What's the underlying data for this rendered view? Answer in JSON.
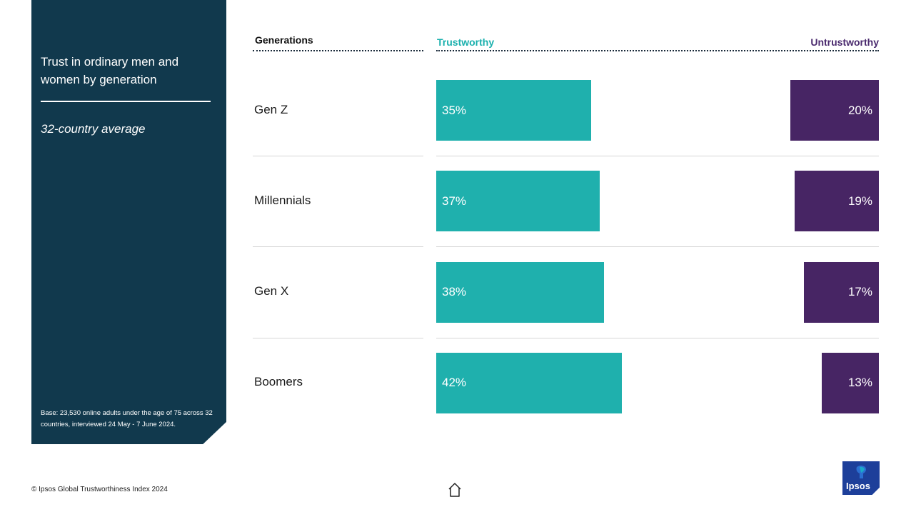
{
  "side_panel": {
    "title": "Trust in ordinary men and women by generation",
    "subtitle": "32-country average",
    "base_note": "Base: 23,530 online adults under the age of 75 across 32 countries, interviewed 24 May - 7 June 2024."
  },
  "chart_data": {
    "type": "bar",
    "orientation": "horizontal",
    "categories": [
      "Gen Z",
      "Millennials",
      "Gen X",
      "Boomers"
    ],
    "category_header": "Generations",
    "series": [
      {
        "name": "Trustworthy",
        "values": [
          35,
          37,
          38,
          42
        ],
        "labels": [
          "35%",
          "37%",
          "38%",
          "42%"
        ],
        "color": "#1fb0ad",
        "align": "left"
      },
      {
        "name": "Untrustworthy",
        "values": [
          20,
          19,
          17,
          13
        ],
        "labels": [
          "20%",
          "19%",
          "17%",
          "13%"
        ],
        "color": "#472564",
        "align": "right"
      }
    ],
    "unit": "%",
    "grid": false,
    "legend": "top"
  },
  "footer": {
    "copyright": "© Ipsos Global Trustworthiness Index 2024",
    "logo_text": "Ipsos"
  },
  "icons": {
    "home": "home-icon",
    "logo": "ipsos-logo-icon"
  },
  "colors": {
    "panel": "#11394d",
    "trustworthy": "#1fb0ad",
    "untrustworthy": "#472564",
    "logo": "#1d3f9a"
  }
}
